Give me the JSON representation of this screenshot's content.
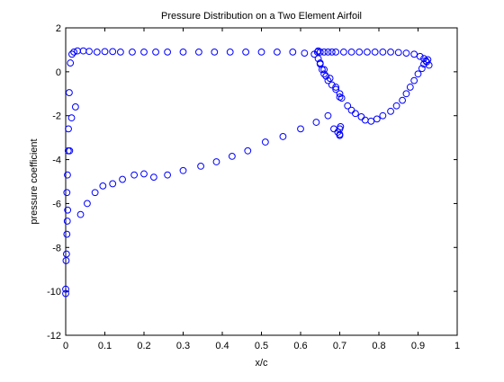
{
  "chart_data": {
    "type": "scatter",
    "title": "Pressure Distribution on a Two Element Airfoil",
    "xlabel": "x/c",
    "ylabel": "pressure coefficient",
    "xlim": [
      0,
      1
    ],
    "ylim": [
      -12,
      2
    ],
    "xticks": [
      "0",
      "0.1",
      "0.2",
      "0.3",
      "0.4",
      "0.5",
      "0.6",
      "0.7",
      "0.8",
      "0.9",
      "1"
    ],
    "yticks": [
      "2",
      "0",
      "-2",
      "-4",
      "-6",
      "-8",
      "-10",
      "-12"
    ],
    "grid": false,
    "marker": "open-circle",
    "marker_color": "#0000ff",
    "series": [
      {
        "x": [
          0.0,
          0.0,
          0.001,
          0.002,
          0.003,
          0.004,
          0.005,
          0.007,
          0.009,
          0.012,
          0.016,
          0.021,
          0.03,
          0.045,
          0.06,
          0.08,
          0.1,
          0.12,
          0.14,
          0.17,
          0.2,
          0.23,
          0.26,
          0.3,
          0.34,
          0.38,
          0.42,
          0.46,
          0.5,
          0.54,
          0.58,
          0.61,
          0.635,
          0.643
        ],
        "y": [
          -10.1,
          -9.9,
          -8.6,
          -8.3,
          -7.4,
          -6.8,
          -6.3,
          -2.6,
          -0.95,
          0.4,
          0.8,
          0.9,
          0.95,
          0.95,
          0.93,
          0.9,
          0.92,
          0.92,
          0.9,
          0.9,
          0.9,
          0.9,
          0.9,
          0.9,
          0.9,
          0.9,
          0.9,
          0.9,
          0.9,
          0.9,
          0.9,
          0.85,
          0.8,
          0.9
        ]
      },
      {
        "x": [
          0.003,
          0.0045,
          0.0065,
          0.01,
          0.015,
          0.025,
          0.038,
          0.055,
          0.075,
          0.095,
          0.12,
          0.145,
          0.175,
          0.2,
          0.225,
          0.26,
          0.3,
          0.345,
          0.385,
          0.425,
          0.465,
          0.51,
          0.555,
          0.6,
          0.64,
          0.67,
          0.685,
          0.695,
          0.7,
          0.702,
          0.7,
          0.7
        ],
        "y": [
          -5.5,
          -4.7,
          -3.6,
          -3.6,
          -2.1,
          -1.6,
          -6.5,
          -6.0,
          -5.5,
          -5.2,
          -5.1,
          -4.9,
          -4.7,
          -4.65,
          -4.8,
          -4.7,
          -4.5,
          -4.3,
          -4.1,
          -3.85,
          -3.6,
          -3.2,
          -2.95,
          -2.6,
          -2.3,
          -2.0,
          -2.6,
          -2.75,
          -2.85,
          -2.5,
          -2.9,
          -2.6
        ]
      },
      {
        "x": [
          0.645,
          0.65,
          0.66,
          0.67,
          0.68,
          0.69,
          0.71,
          0.73,
          0.75,
          0.77,
          0.79,
          0.81,
          0.83,
          0.85,
          0.87,
          0.89,
          0.905,
          0.915,
          0.922,
          0.928
        ],
        "y": [
          0.95,
          0.9,
          0.9,
          0.9,
          0.9,
          0.9,
          0.9,
          0.9,
          0.9,
          0.9,
          0.9,
          0.9,
          0.9,
          0.88,
          0.85,
          0.8,
          0.7,
          0.6,
          0.45,
          0.3
        ]
      },
      {
        "x": [
          0.65,
          0.66,
          0.675,
          0.69,
          0.7,
          0.7,
          0.705,
          0.72,
          0.73,
          0.74,
          0.755,
          0.765,
          0.78,
          0.795,
          0.81,
          0.83,
          0.845,
          0.86,
          0.87,
          0.88,
          0.89,
          0.9,
          0.91,
          0.915,
          0.92,
          0.925
        ],
        "y": [
          0.4,
          0.1,
          -0.3,
          -0.7,
          -1.0,
          -1.15,
          -1.2,
          -1.55,
          -1.75,
          -1.9,
          -2.05,
          -2.2,
          -2.25,
          -2.15,
          -2.0,
          -1.8,
          -1.55,
          -1.3,
          -1.0,
          -0.7,
          -0.4,
          -0.1,
          0.15,
          0.35,
          0.5,
          0.55
        ]
      },
      {
        "x": [
          0.645,
          0.65,
          0.655,
          0.66,
          0.665,
          0.67,
          0.68,
          0.69
        ],
        "y": [
          0.6,
          0.35,
          0.1,
          -0.1,
          -0.2,
          -0.4,
          -0.6,
          -0.8
        ]
      }
    ]
  }
}
